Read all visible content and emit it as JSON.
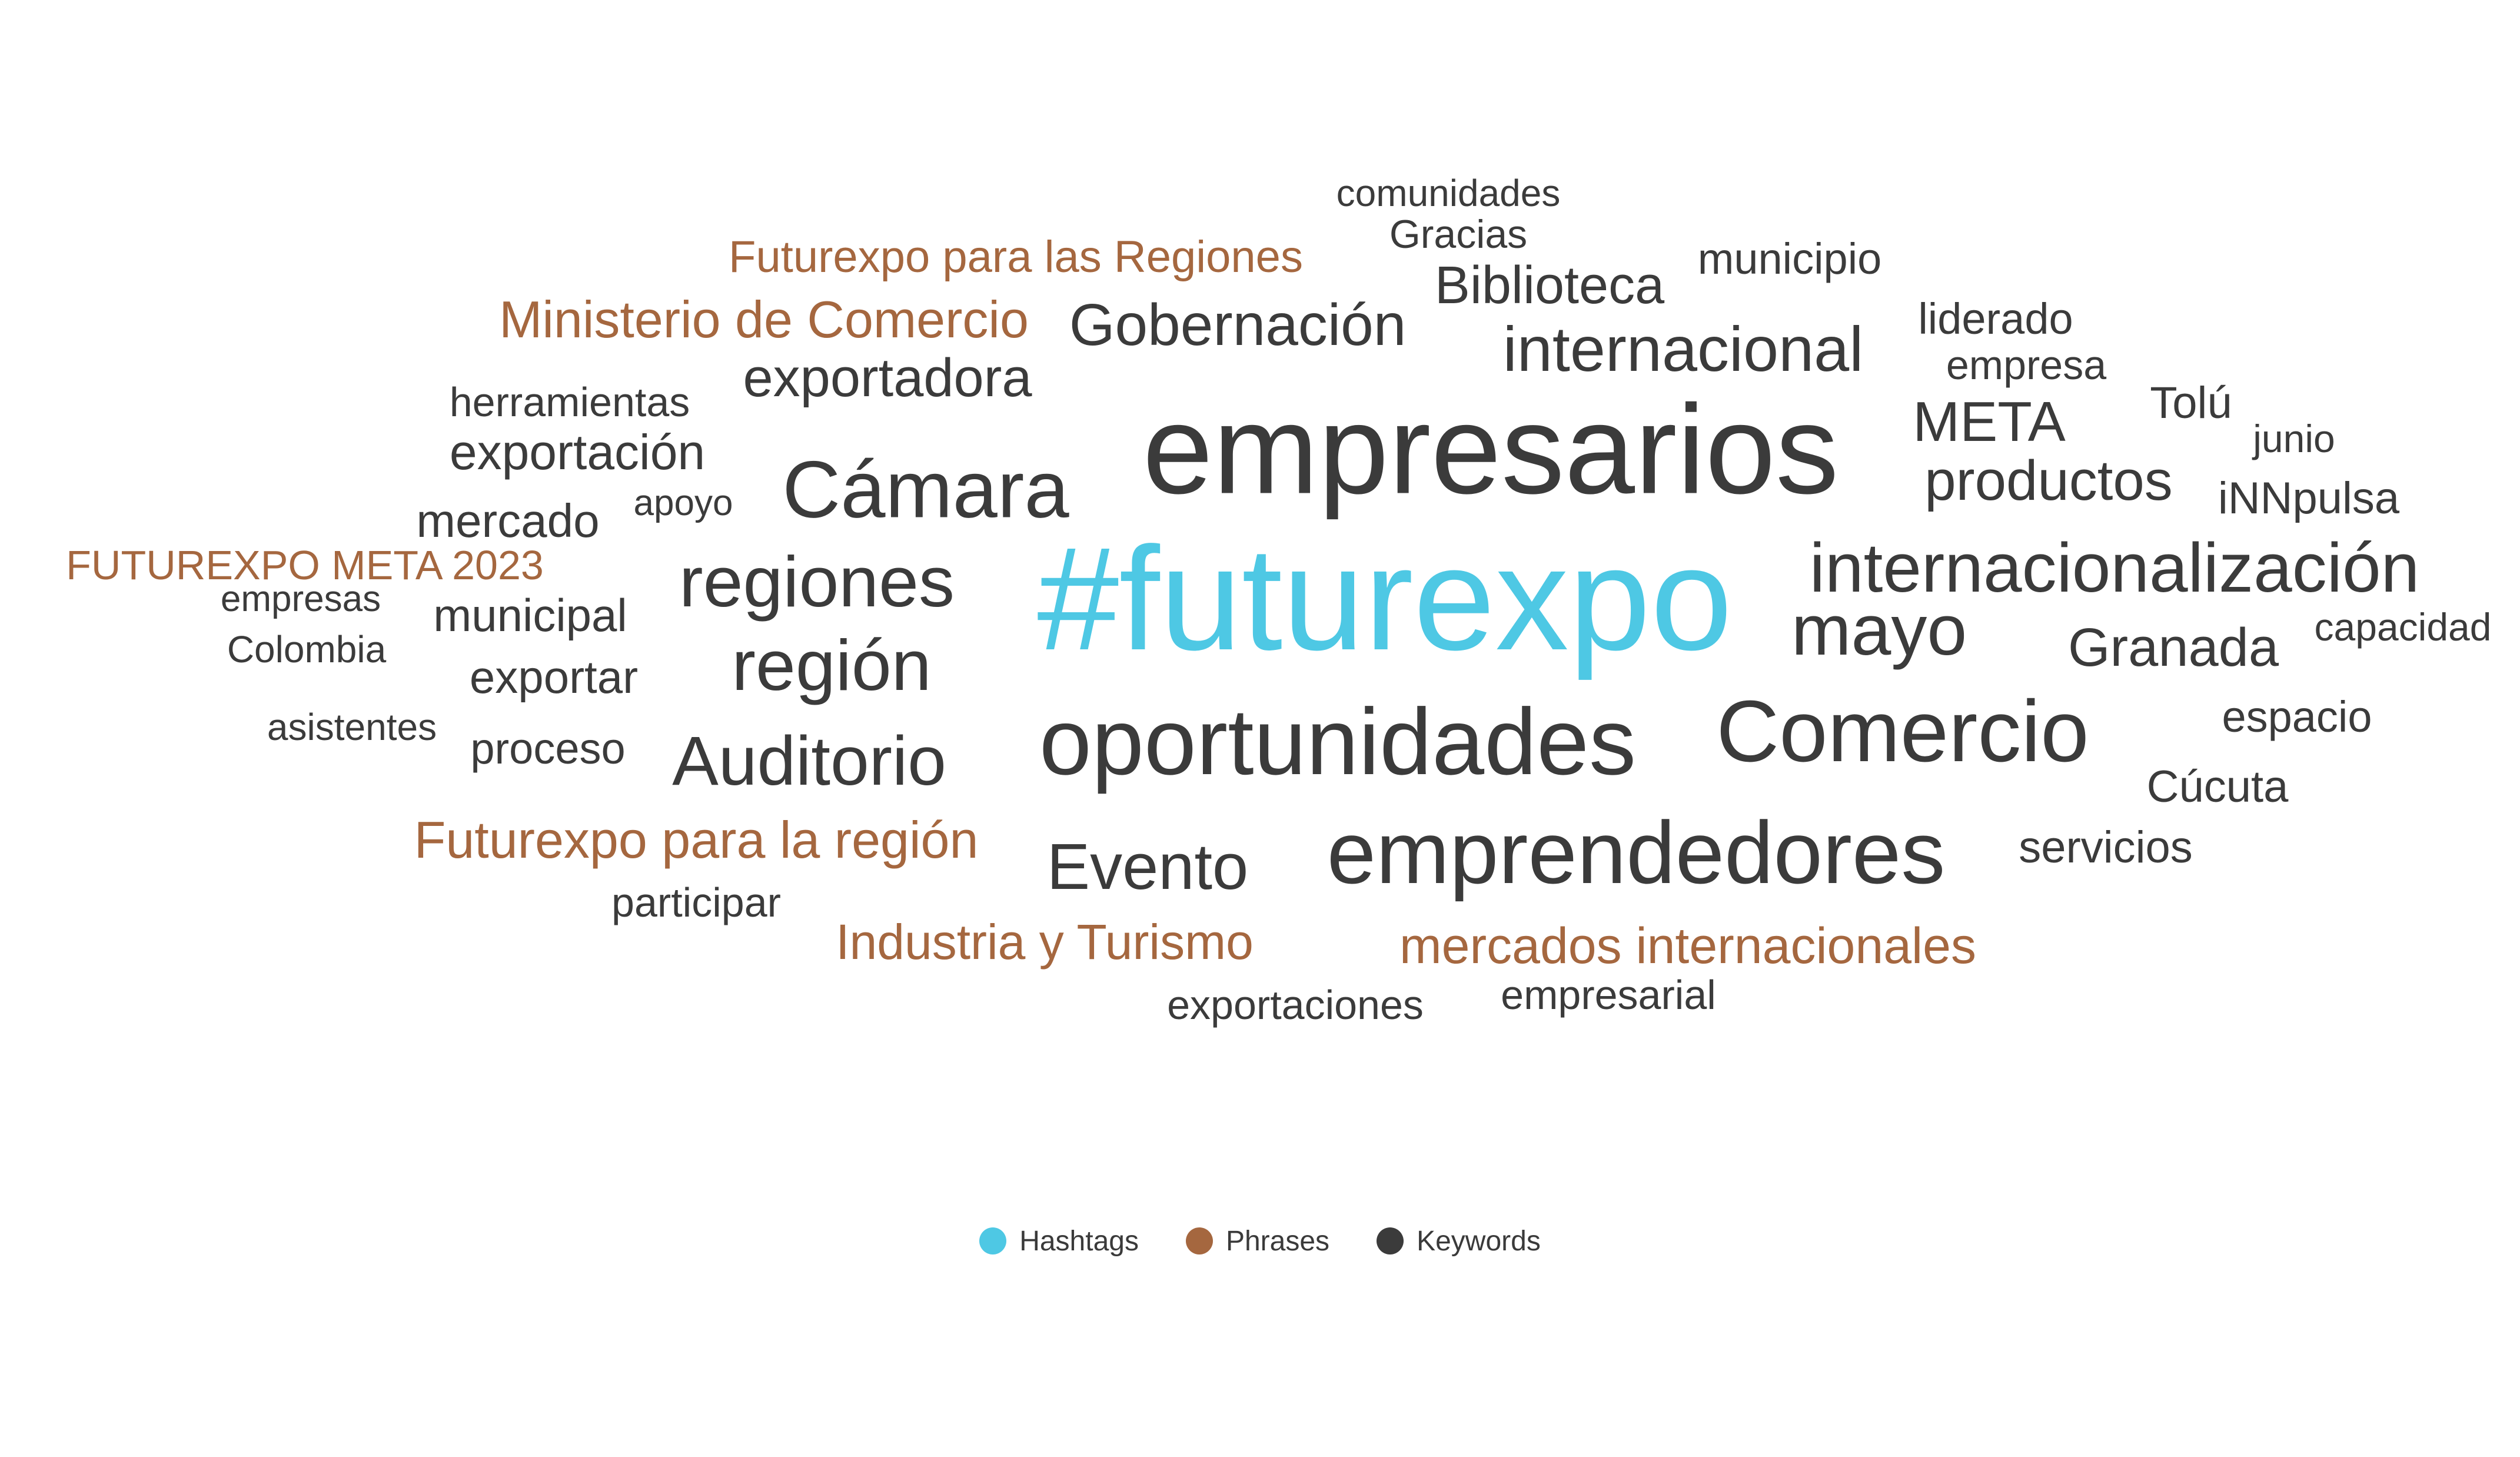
{
  "colors": {
    "hashtag": "#4ec8e4",
    "phrase": "#a5673f",
    "keyword": "#3b3b3b"
  },
  "legend": [
    {
      "label": "Hashtags",
      "category": "hashtag"
    },
    {
      "label": "Phrases",
      "category": "phrase"
    },
    {
      "label": "Keywords",
      "category": "keyword"
    }
  ],
  "words": [
    {
      "text": "#futurexpo",
      "category": "hashtag",
      "weight": 100
    },
    {
      "text": "empresarios",
      "category": "keyword",
      "weight": 86
    },
    {
      "text": "oportunidades",
      "category": "keyword",
      "weight": 66
    },
    {
      "text": "emprendedores",
      "category": "keyword",
      "weight": 62
    },
    {
      "text": "Comercio",
      "category": "keyword",
      "weight": 61
    },
    {
      "text": "Cámara",
      "category": "keyword",
      "weight": 56
    },
    {
      "text": "internacionalización",
      "category": "keyword",
      "weight": 49
    },
    {
      "text": "regiones",
      "category": "keyword",
      "weight": 50
    },
    {
      "text": "región",
      "category": "keyword",
      "weight": 50
    },
    {
      "text": "mayo",
      "category": "keyword",
      "weight": 50
    },
    {
      "text": "Auditorio",
      "category": "keyword",
      "weight": 49
    },
    {
      "text": "Evento",
      "category": "keyword",
      "weight": 45
    },
    {
      "text": "internacional",
      "category": "keyword",
      "weight": 44
    },
    {
      "text": "Gobernación",
      "category": "keyword",
      "weight": 41
    },
    {
      "text": "productos",
      "category": "keyword",
      "weight": 39
    },
    {
      "text": "META",
      "category": "keyword",
      "weight": 39
    },
    {
      "text": "Biblioteca",
      "category": "keyword",
      "weight": 37
    },
    {
      "text": "exportadora",
      "category": "keyword",
      "weight": 37
    },
    {
      "text": "Granada",
      "category": "keyword",
      "weight": 38
    },
    {
      "text": "Futurexpo para la región",
      "category": "phrase",
      "weight": 36
    },
    {
      "text": "Ministerio de Comercio",
      "category": "phrase",
      "weight": 36
    },
    {
      "text": "mercados internacionales",
      "category": "phrase",
      "weight": 35
    },
    {
      "text": "Industria y Turismo",
      "category": "phrase",
      "weight": 34
    },
    {
      "text": "exportación",
      "category": "keyword",
      "weight": 34
    },
    {
      "text": "mercado",
      "category": "keyword",
      "weight": 33
    },
    {
      "text": "municipal",
      "category": "keyword",
      "weight": 32
    },
    {
      "text": "exportar",
      "category": "keyword",
      "weight": 32
    },
    {
      "text": "Futurexpo para las Regiones",
      "category": "phrase",
      "weight": 31
    },
    {
      "text": "Cúcuta",
      "category": "keyword",
      "weight": 31
    },
    {
      "text": "servicios",
      "category": "keyword",
      "weight": 31
    },
    {
      "text": "municipio",
      "category": "keyword",
      "weight": 30
    },
    {
      "text": "iNNpulsa",
      "category": "keyword",
      "weight": 31
    },
    {
      "text": "Tolú",
      "category": "keyword",
      "weight": 31
    },
    {
      "text": "espacio",
      "category": "keyword",
      "weight": 30
    },
    {
      "text": "proceso",
      "category": "keyword",
      "weight": 30
    },
    {
      "text": "liderado",
      "category": "keyword",
      "weight": 30
    },
    {
      "text": "FUTUREXPO META 2023",
      "category": "phrase",
      "weight": 28
    },
    {
      "text": "herramientas",
      "category": "keyword",
      "weight": 28
    },
    {
      "text": "empresa",
      "category": "keyword",
      "weight": 28
    },
    {
      "text": "participar",
      "category": "keyword",
      "weight": 28
    },
    {
      "text": "exportaciones",
      "category": "keyword",
      "weight": 28
    },
    {
      "text": "empresarial",
      "category": "keyword",
      "weight": 28
    },
    {
      "text": "Gracias",
      "category": "keyword",
      "weight": 27
    },
    {
      "text": "capacidad",
      "category": "keyword",
      "weight": 27
    },
    {
      "text": "junio",
      "category": "keyword",
      "weight": 27
    },
    {
      "text": "comunidades",
      "category": "keyword",
      "weight": 26
    },
    {
      "text": "asistentes",
      "category": "keyword",
      "weight": 26
    },
    {
      "text": "Colombia",
      "category": "keyword",
      "weight": 26
    },
    {
      "text": "empresas",
      "category": "keyword",
      "weight": 25
    },
    {
      "text": "apoyo",
      "category": "keyword",
      "weight": 25
    }
  ]
}
